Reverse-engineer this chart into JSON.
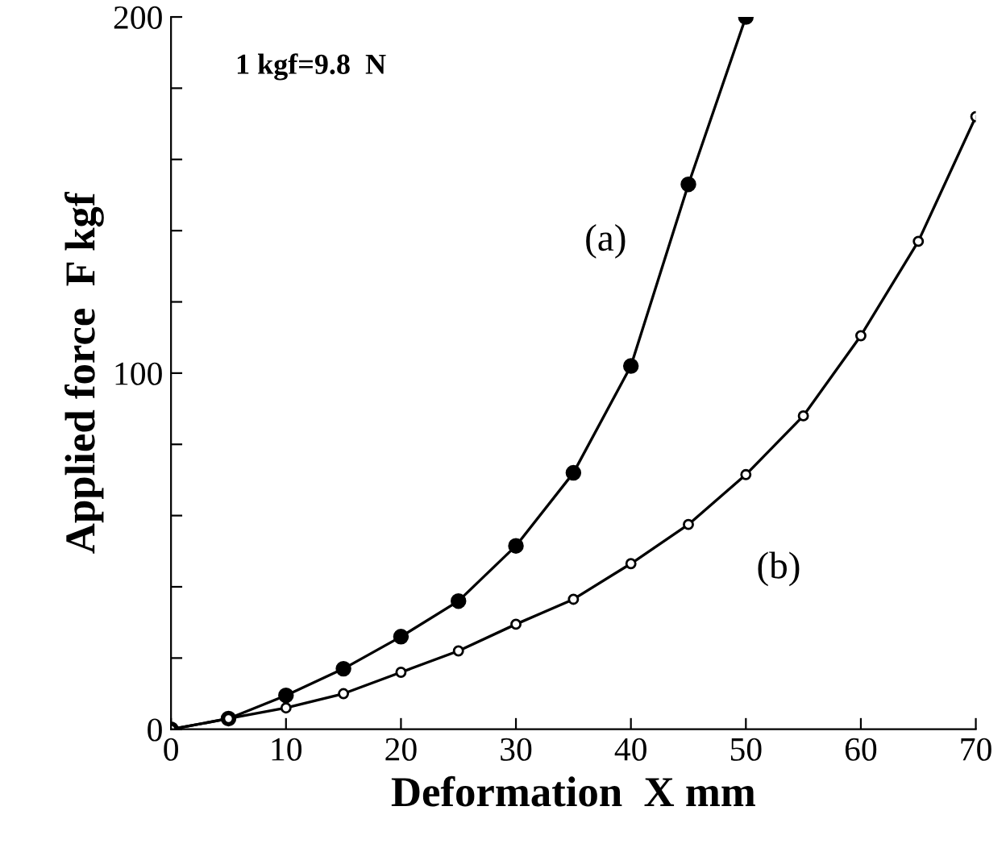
{
  "chart_data": {
    "type": "line",
    "xlabel": "Deformation  X mm",
    "ylabel": "Applied force  F kgf",
    "xlim": [
      0,
      70
    ],
    "xticks": [
      0,
      10,
      20,
      30,
      40,
      50,
      60,
      70
    ],
    "ylim": [
      0,
      200
    ],
    "yticks": [
      0,
      {
        "value": 20,
        "label": null
      },
      {
        "value": 40,
        "label": null
      },
      {
        "value": 60,
        "label": null
      },
      {
        "value": 80,
        "label": null
      },
      100,
      {
        "value": 120,
        "label": null
      },
      {
        "value": 140,
        "label": null
      },
      {
        "value": 160,
        "label": null
      },
      {
        "value": 180,
        "label": null
      },
      200
    ],
    "grid": false,
    "legend": false,
    "marker": "circle",
    "line_style": "solid",
    "series": [
      {
        "color": "#000000",
        "x": [
          0,
          5,
          10,
          15,
          20,
          25,
          30,
          35,
          40,
          45,
          50
        ],
        "values": [
          0,
          3,
          9.5,
          17,
          26,
          36,
          51.5,
          72,
          102,
          153,
          200
        ]
      },
      {
        "color": "#000000",
        "x": [
          0,
          5,
          10,
          15,
          20,
          25,
          30,
          35,
          40,
          45,
          50,
          55,
          60,
          65,
          70
        ],
        "values": [
          0,
          3,
          6,
          10,
          16,
          22,
          29.5,
          36.5,
          46.5,
          57.5,
          71.5,
          88,
          110.5,
          137,
          172
        ]
      }
    ],
    "annotations": [
      "1 kgf=9.8  N",
      "(a)",
      "(b)"
    ]
  }
}
